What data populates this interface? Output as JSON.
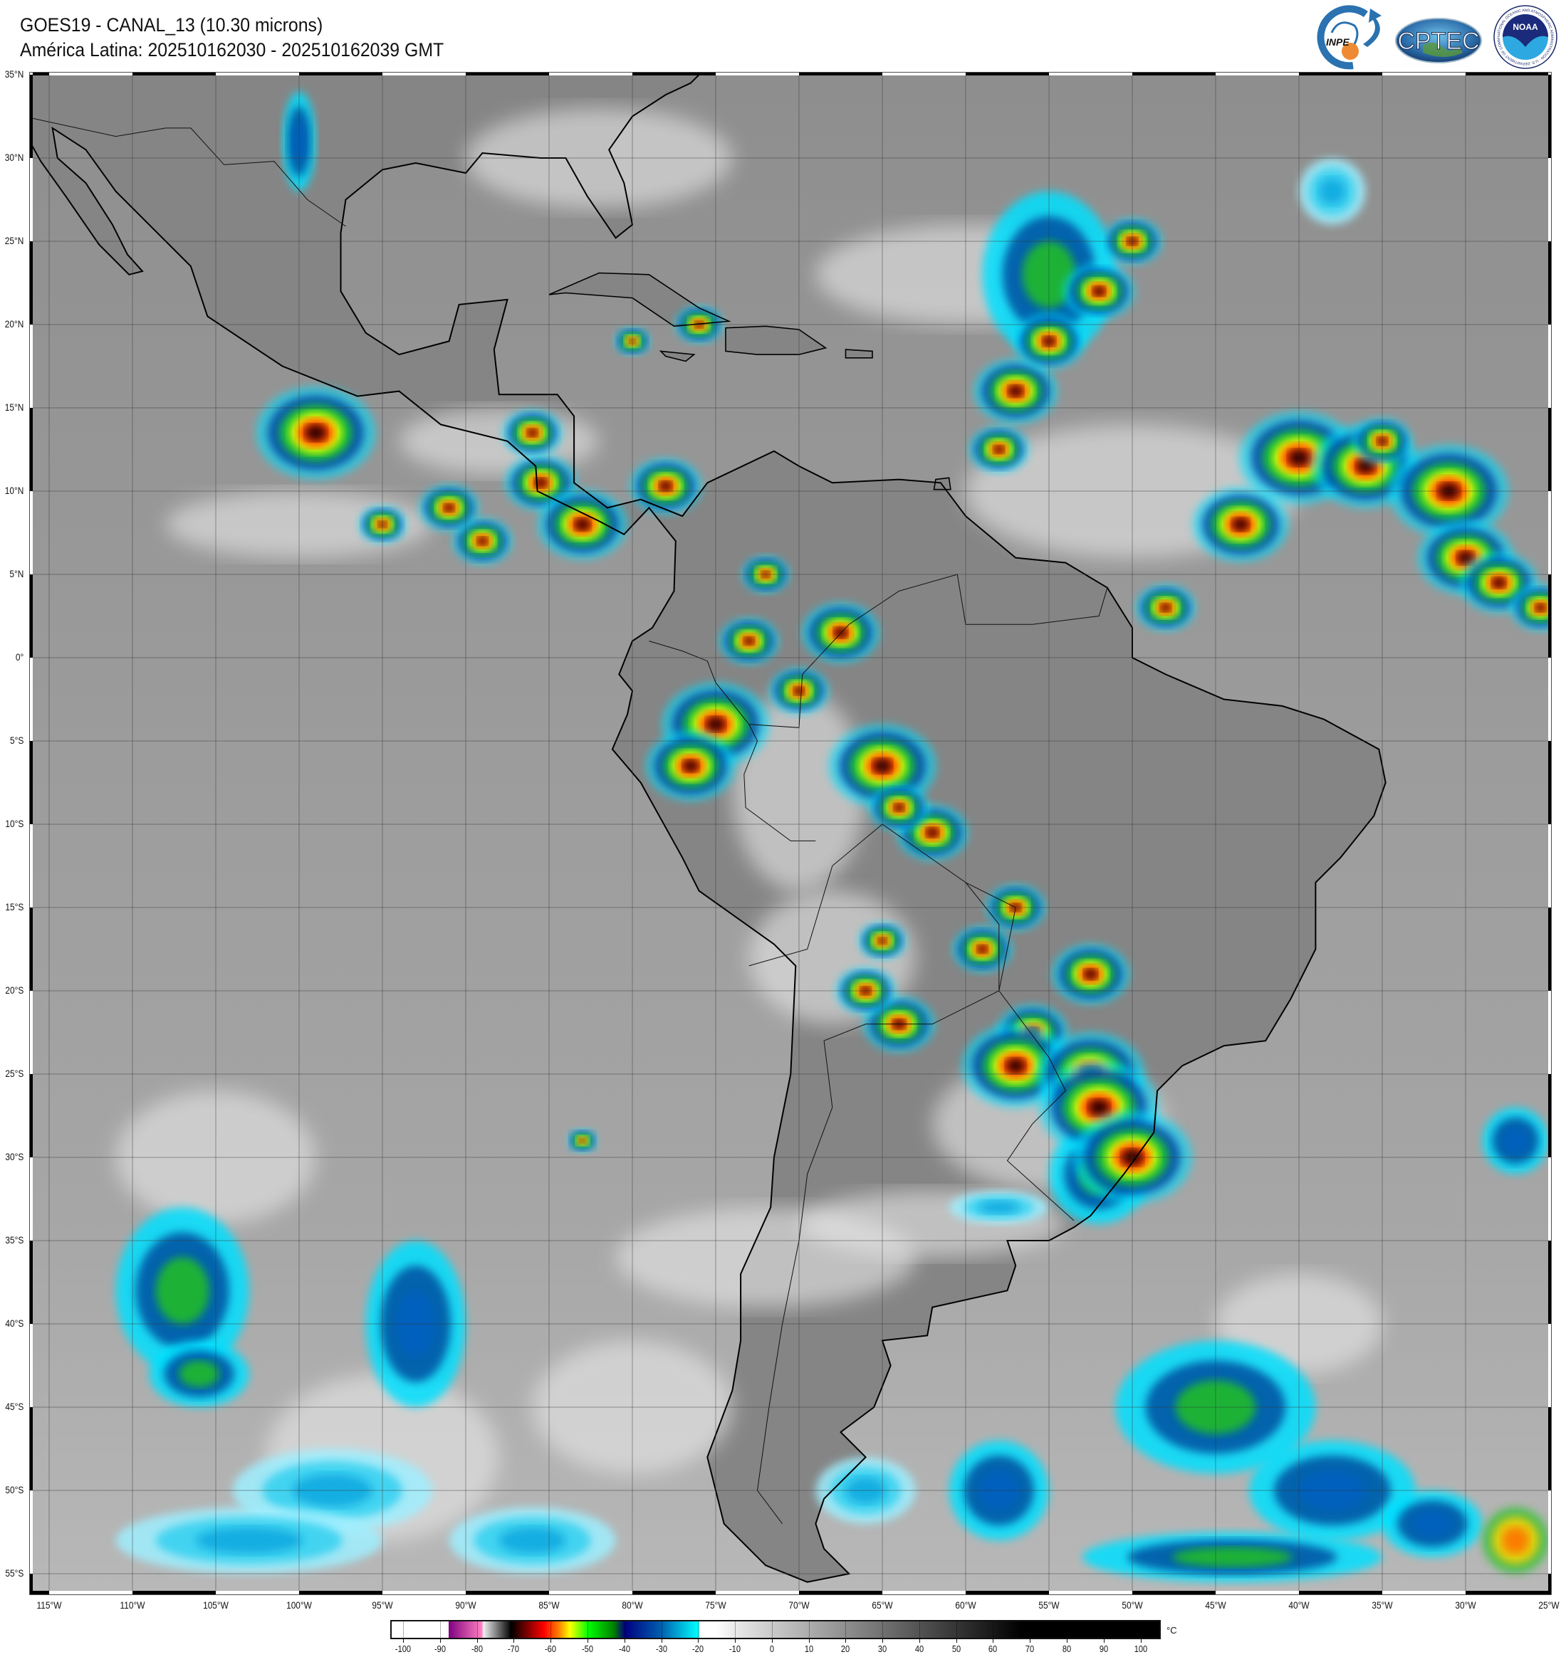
{
  "header": {
    "title": "GOES19 - CANAL_13 (10.30 microns)",
    "subtitle": "América Latina: 202510162030 - 202510162039 GMT"
  },
  "logos": {
    "inpe": "INPE",
    "cptec": "CPTEC",
    "noaa": "NOAA",
    "noaa_ring": "NATIONAL OCEANIC AND ATMOSPHERIC ADMINISTRATION · U.S. DEPARTMENT OF COMMERCE"
  },
  "map": {
    "projection": "equirectangular",
    "lon_range": [
      -115,
      -25
    ],
    "lat_range": [
      -55,
      35
    ],
    "lat_labels": [
      "35°N",
      "30°N",
      "25°N",
      "20°N",
      "15°N",
      "10°N",
      "5°N",
      "0°",
      "5°S",
      "10°S",
      "15°S",
      "20°S",
      "25°S",
      "30°S",
      "35°S",
      "40°S",
      "45°S",
      "50°S",
      "55°S"
    ],
    "lon_labels": [
      "115°W",
      "110°W",
      "105°W",
      "100°W",
      "95°W",
      "90°W",
      "85°W",
      "80°W",
      "75°W",
      "70°W",
      "65°W",
      "60°W",
      "55°W",
      "50°W",
      "45°W",
      "40°W",
      "35°W",
      "30°W",
      "25°W"
    ],
    "ocean_color": "#959595",
    "land_color": "#858585",
    "grid": true
  },
  "colorbar": {
    "unit": "°C",
    "ticks": [
      "-100",
      "-90",
      "-80",
      "-70",
      "-60",
      "-50",
      "-40",
      "-30",
      "-20",
      "-10",
      "0",
      "10",
      "20",
      "30",
      "40",
      "50",
      "60",
      "70",
      "80",
      "90",
      "100"
    ],
    "colors": {
      "purple": "#800080",
      "pink": "#ff80c0",
      "red": "#ff0000",
      "orange": "#ff8000",
      "yellow": "#ffff00",
      "green": "#00ff00",
      "navy": "#000080",
      "cyan": "#00ffff"
    }
  }
}
